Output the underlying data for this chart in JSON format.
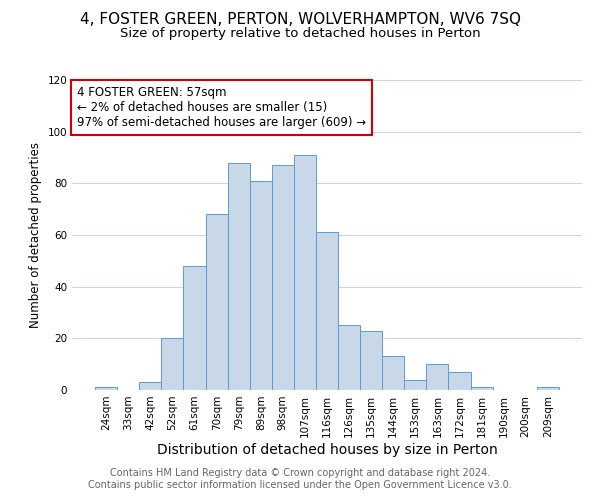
{
  "title": "4, FOSTER GREEN, PERTON, WOLVERHAMPTON, WV6 7SQ",
  "subtitle": "Size of property relative to detached houses in Perton",
  "xlabel": "Distribution of detached houses by size in Perton",
  "ylabel": "Number of detached properties",
  "categories": [
    "24sqm",
    "33sqm",
    "42sqm",
    "52sqm",
    "61sqm",
    "70sqm",
    "79sqm",
    "89sqm",
    "98sqm",
    "107sqm",
    "116sqm",
    "126sqm",
    "135sqm",
    "144sqm",
    "153sqm",
    "163sqm",
    "172sqm",
    "181sqm",
    "190sqm",
    "200sqm",
    "209sqm"
  ],
  "values": [
    1,
    0,
    3,
    20,
    48,
    68,
    88,
    81,
    87,
    91,
    61,
    25,
    23,
    13,
    4,
    10,
    7,
    1,
    0,
    0,
    1
  ],
  "bar_color": "#c8d8e8",
  "bar_edge_color": "#5b9bd5",
  "annotation_title": "4 FOSTER GREEN: 57sqm",
  "annotation_line1": "← 2% of detached houses are smaller (15)",
  "annotation_line2": "97% of semi-detached houses are larger (609) →",
  "annotation_box_color": "#ffffff",
  "annotation_box_edge": "#cc0000",
  "footer1": "Contains HM Land Registry data © Crown copyright and database right 2024.",
  "footer2": "Contains public sector information licensed under the Open Government Licence v3.0.",
  "ylim": [
    0,
    120
  ],
  "yticks": [
    0,
    20,
    40,
    60,
    80,
    100,
    120
  ],
  "title_fontsize": 11,
  "subtitle_fontsize": 9.5,
  "xlabel_fontsize": 10,
  "ylabel_fontsize": 8.5,
  "tick_fontsize": 7.5,
  "annotation_fontsize": 8.5,
  "footer_fontsize": 7
}
